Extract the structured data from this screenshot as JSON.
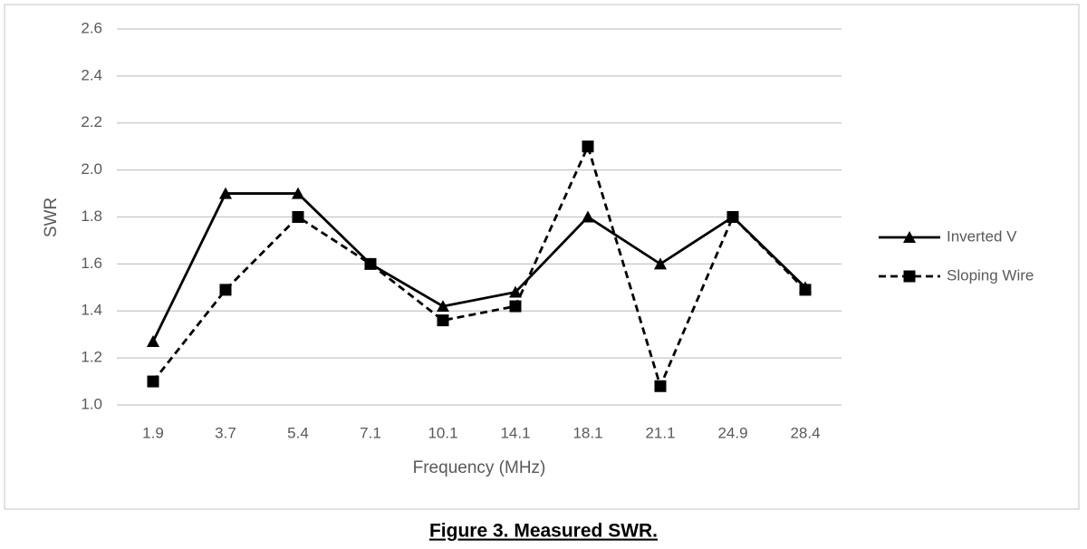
{
  "chart_data": {
    "type": "line",
    "caption": "Figure 3.  Measured SWR.",
    "x_label": "Frequency (MHz)",
    "y_label": "SWR",
    "categories": [
      "1.9",
      "3.7",
      "5.4",
      "7.1",
      "10.1",
      "14.1",
      "18.1",
      "21.1",
      "24.9",
      "28.4"
    ],
    "series": [
      {
        "name": "Inverted V",
        "color": "#000000",
        "line_style": "solid",
        "marker": "triangle",
        "values": [
          1.27,
          1.9,
          1.9,
          1.6,
          1.42,
          1.48,
          1.8,
          1.6,
          1.8,
          1.5
        ]
      },
      {
        "name": "Sloping Wire",
        "color": "#000000",
        "line_style": "dashed",
        "marker": "square",
        "values": [
          1.1,
          1.49,
          1.8,
          1.6,
          1.36,
          1.42,
          2.1,
          1.08,
          1.8,
          1.49
        ]
      }
    ],
    "ylim": [
      1,
      2.6
    ],
    "yticks": [
      {
        "value": 1,
        "label": "1.0"
      },
      1.2,
      1.4,
      1.6,
      1.8,
      {
        "value": 2,
        "label": "2.0"
      },
      2.2,
      2.4,
      2.6
    ],
    "grid": true,
    "legend": "right"
  }
}
